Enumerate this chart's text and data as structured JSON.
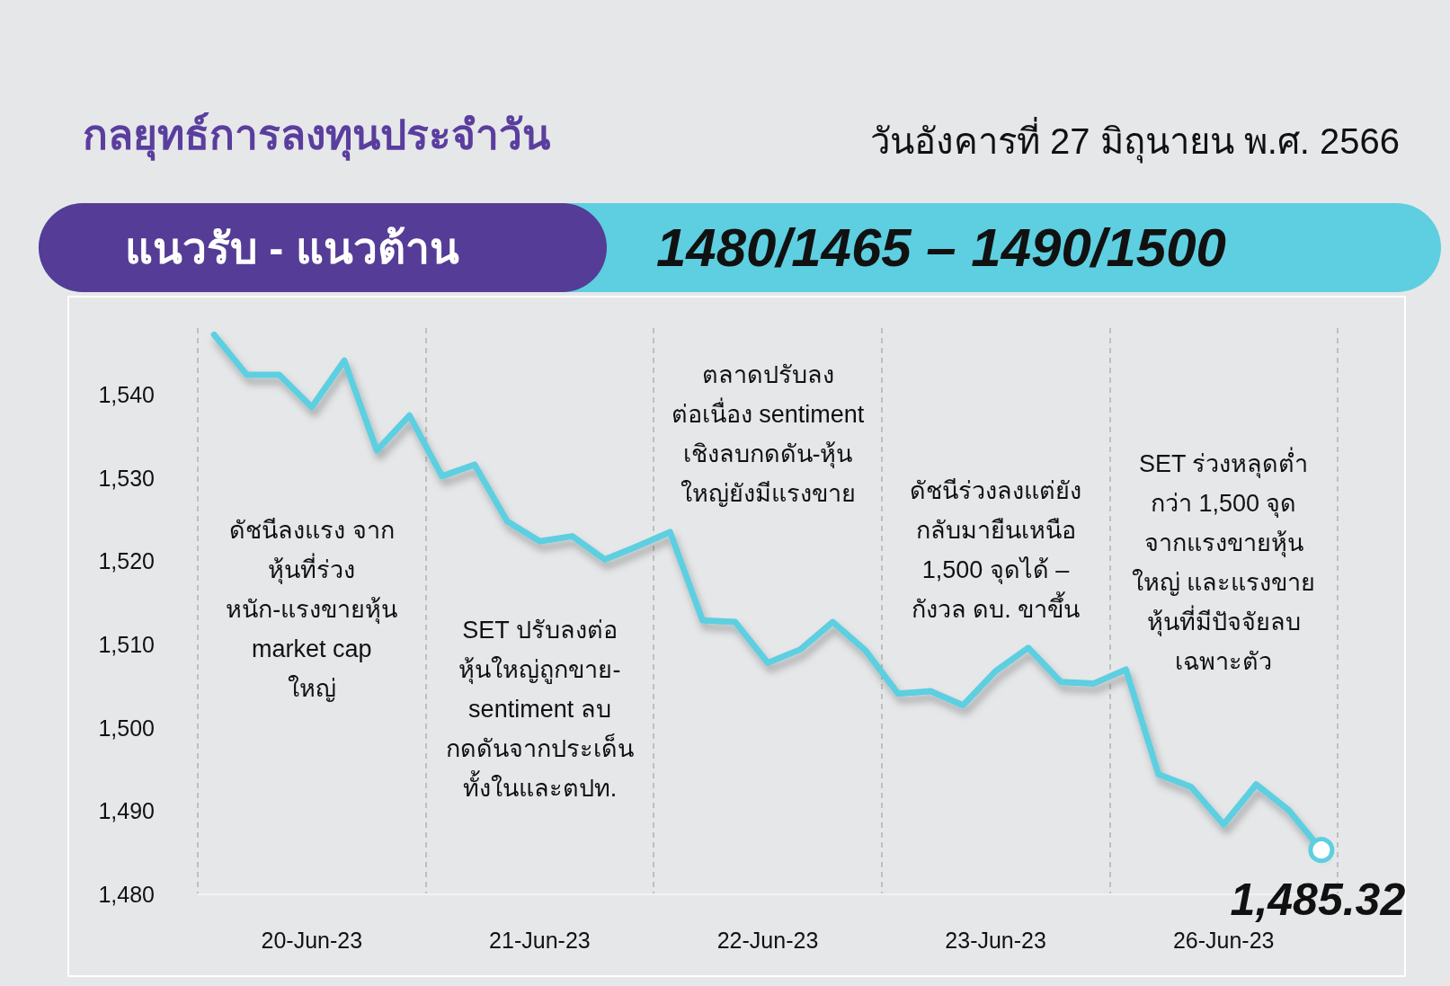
{
  "chart_data": {
    "type": "line",
    "title": "กลยุทธ์การลงทุนประจำวัน",
    "subtitle": "วันอังคารที่ 27 มิถุนายน พ.ศ. 2566",
    "categories": [
      null,
      null,
      null,
      "20-Jun-23",
      null,
      null,
      null,
      null,
      null,
      null,
      "21-Jun-23",
      null,
      null,
      null,
      null,
      null,
      null,
      "22-Jun-23",
      null,
      null,
      null,
      null,
      null,
      null,
      "23-Jun-23",
      null,
      null,
      null,
      null,
      null,
      null,
      "26-Jun-23",
      null,
      null,
      null
    ],
    "values": [
      1547.2,
      1542.4,
      1542.4,
      1538.5,
      1544.1,
      1533.3,
      1537.5,
      1530.2,
      1531.6,
      1524.8,
      1522.4,
      1523.0,
      1520.2,
      1521.8,
      1523.5,
      1512.9,
      1512.7,
      1507.8,
      1509.4,
      1512.7,
      1509.3,
      1504.1,
      1504.4,
      1502.7,
      1506.8,
      1509.6,
      1505.5,
      1505.3,
      1507.0,
      1494.4,
      1492.9,
      1488.4,
      1493.2,
      1490.1,
      1485.32
    ],
    "value_labels": [
      null,
      null,
      null,
      null,
      null,
      null,
      null,
      null,
      null,
      null,
      null,
      null,
      null,
      null,
      null,
      null,
      null,
      null,
      null,
      null,
      null,
      null,
      null,
      null,
      null,
      null,
      null,
      null,
      null,
      null,
      null,
      null,
      null,
      null,
      "1,485.32"
    ],
    "color": "#5dcfe0",
    "ylim": [
      1480,
      1548
    ],
    "yticks": [
      {
        "value": 1480,
        "label": "1,480"
      },
      {
        "value": 1490,
        "label": "1,490"
      },
      {
        "value": 1500,
        "label": "1,500"
      },
      {
        "value": 1510,
        "label": "1,510"
      },
      {
        "value": 1520,
        "label": "1,520"
      },
      {
        "value": 1530,
        "label": "1,530"
      },
      {
        "value": 1540,
        "label": "1,540"
      }
    ],
    "grid": "x",
    "annotations": [
      "แนวรับ - แนวต้าน",
      "1480/1465 – 1490/1500",
      "ดัชนีลงแรง จาก\nหุ้นที่ร่วง\nหนัก-แรงขายหุ้น\nmarket cap\nใหญ่",
      "SET ปรับลงต่อ\nหุ้นใหญ่ถูกขาย-\nsentiment ลบ\nกดดันจากประเด็น\nทั้งในและตปท.",
      "ตลาดปรับลง\nต่อเนื่อง sentiment\nเชิงลบกดดัน-หุ้น\nใหญ่ยังมีแรงขาย",
      "ดัชนีร่วงลงแต่ยัง\nกลับมายืนเหนือ\n1,500 จุดได้ –\nกังวล ดบ. ขาขึ้น",
      "SET ร่วงหลุดต่ำ\nกว่า 1,500 จุด\nจากแรงขายหุ้น\nใหญ่ และแรงขาย\nหุ้นที่มีปัจจัยลบ\nเฉพาะตัว"
    ]
  }
}
